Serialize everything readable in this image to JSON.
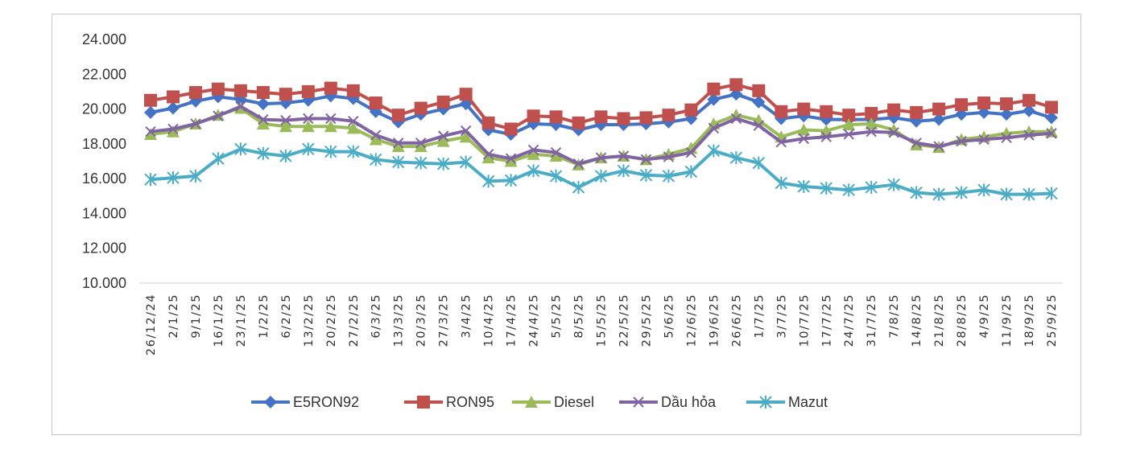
{
  "chart_data": {
    "type": "line",
    "title": "",
    "xlabel": "",
    "ylabel": "",
    "ylim": [
      10000,
      24000
    ],
    "y_ticks": [
      10000,
      12000,
      14000,
      16000,
      18000,
      20000,
      22000,
      24000
    ],
    "y_tick_labels": [
      "10.000",
      "12.000",
      "14.000",
      "16.000",
      "18.000",
      "20.000",
      "22.000",
      "24.000"
    ],
    "grid": false,
    "legend_position": "bottom",
    "categories": [
      "26/12/24",
      "2/1/25",
      "9/1/25",
      "16/1/25",
      "23/1/25",
      "1/2/25",
      "6/2/25",
      "13/2/25",
      "20/2/25",
      "27/2/25",
      "6/3/25",
      "13/3/25",
      "20/3/25",
      "27/3/25",
      "3/4/25",
      "10/4/25",
      "17/4/25",
      "24/4/25",
      "5/5/25",
      "8/5/25",
      "15/5/25",
      "22/5/25",
      "29/5/25",
      "5/6/25",
      "12/6/25",
      "19/6/25",
      "26/6/25",
      "1/7/25",
      "3/7/25",
      "10/7/25",
      "17/7/25",
      "24/7/25",
      "31/7/25",
      "7/8/25",
      "14/8/25",
      "21/8/25",
      "28/8/25",
      "4/9/25",
      "11/9/25",
      "18/9/25",
      "25/9/25"
    ],
    "series": [
      {
        "name": "E5RON92",
        "color": "#4472C4",
        "marker": "diamond",
        "values": [
          19800,
          20050,
          20450,
          20700,
          20550,
          20300,
          20350,
          20500,
          20750,
          20600,
          19850,
          19250,
          19700,
          20000,
          20300,
          18800,
          18550,
          19150,
          19100,
          18800,
          19100,
          19100,
          19150,
          19250,
          19450,
          20550,
          20850,
          20400,
          19450,
          19600,
          19400,
          19400,
          19400,
          19500,
          19300,
          19400,
          19700,
          19800,
          19700,
          19900,
          19500
        ]
      },
      {
        "name": "RON95",
        "color": "#C0504D",
        "marker": "square",
        "values": [
          20500,
          20700,
          20950,
          21150,
          21050,
          20950,
          20850,
          21000,
          21200,
          21050,
          20350,
          19650,
          20050,
          20400,
          20850,
          19200,
          18850,
          19600,
          19550,
          19200,
          19550,
          19450,
          19500,
          19650,
          19950,
          21150,
          21400,
          21050,
          19850,
          20000,
          19850,
          19650,
          19750,
          19950,
          19800,
          20000,
          20250,
          20350,
          20300,
          20500,
          20100
        ]
      },
      {
        "name": "Diesel",
        "color": "#9BBB59",
        "marker": "triangle",
        "values": [
          18550,
          18700,
          19150,
          19650,
          20050,
          19150,
          19000,
          19000,
          19000,
          18900,
          18250,
          17850,
          17850,
          18150,
          18400,
          17200,
          17000,
          17400,
          17300,
          16800,
          17200,
          17300,
          17100,
          17400,
          17750,
          19150,
          19650,
          19350,
          18400,
          18800,
          18750,
          19100,
          19150,
          18800,
          17950,
          17800,
          18250,
          18400,
          18600,
          18700,
          18700
        ]
      },
      {
        "name": "Dầu hỏa",
        "color": "#8064A2",
        "marker": "x",
        "values": [
          18700,
          18850,
          19150,
          19600,
          20150,
          19400,
          19350,
          19450,
          19450,
          19300,
          18500,
          18050,
          18050,
          18450,
          18750,
          17400,
          17150,
          17650,
          17500,
          16850,
          17200,
          17300,
          17100,
          17250,
          17500,
          18900,
          19450,
          19050,
          18100,
          18300,
          18400,
          18550,
          18700,
          18650,
          18050,
          17850,
          18150,
          18250,
          18350,
          18500,
          18600
        ]
      },
      {
        "name": "Mazut",
        "color": "#4BACC6",
        "marker": "star",
        "values": [
          15950,
          16050,
          16150,
          17150,
          17700,
          17450,
          17300,
          17700,
          17550,
          17550,
          17100,
          16950,
          16900,
          16850,
          16950,
          15850,
          15900,
          16450,
          16150,
          15500,
          16150,
          16450,
          16200,
          16150,
          16400,
          17600,
          17200,
          16900,
          15750,
          15550,
          15450,
          15350,
          15500,
          15650,
          15200,
          15100,
          15200,
          15350,
          15100,
          15100,
          15150
        ]
      }
    ]
  }
}
